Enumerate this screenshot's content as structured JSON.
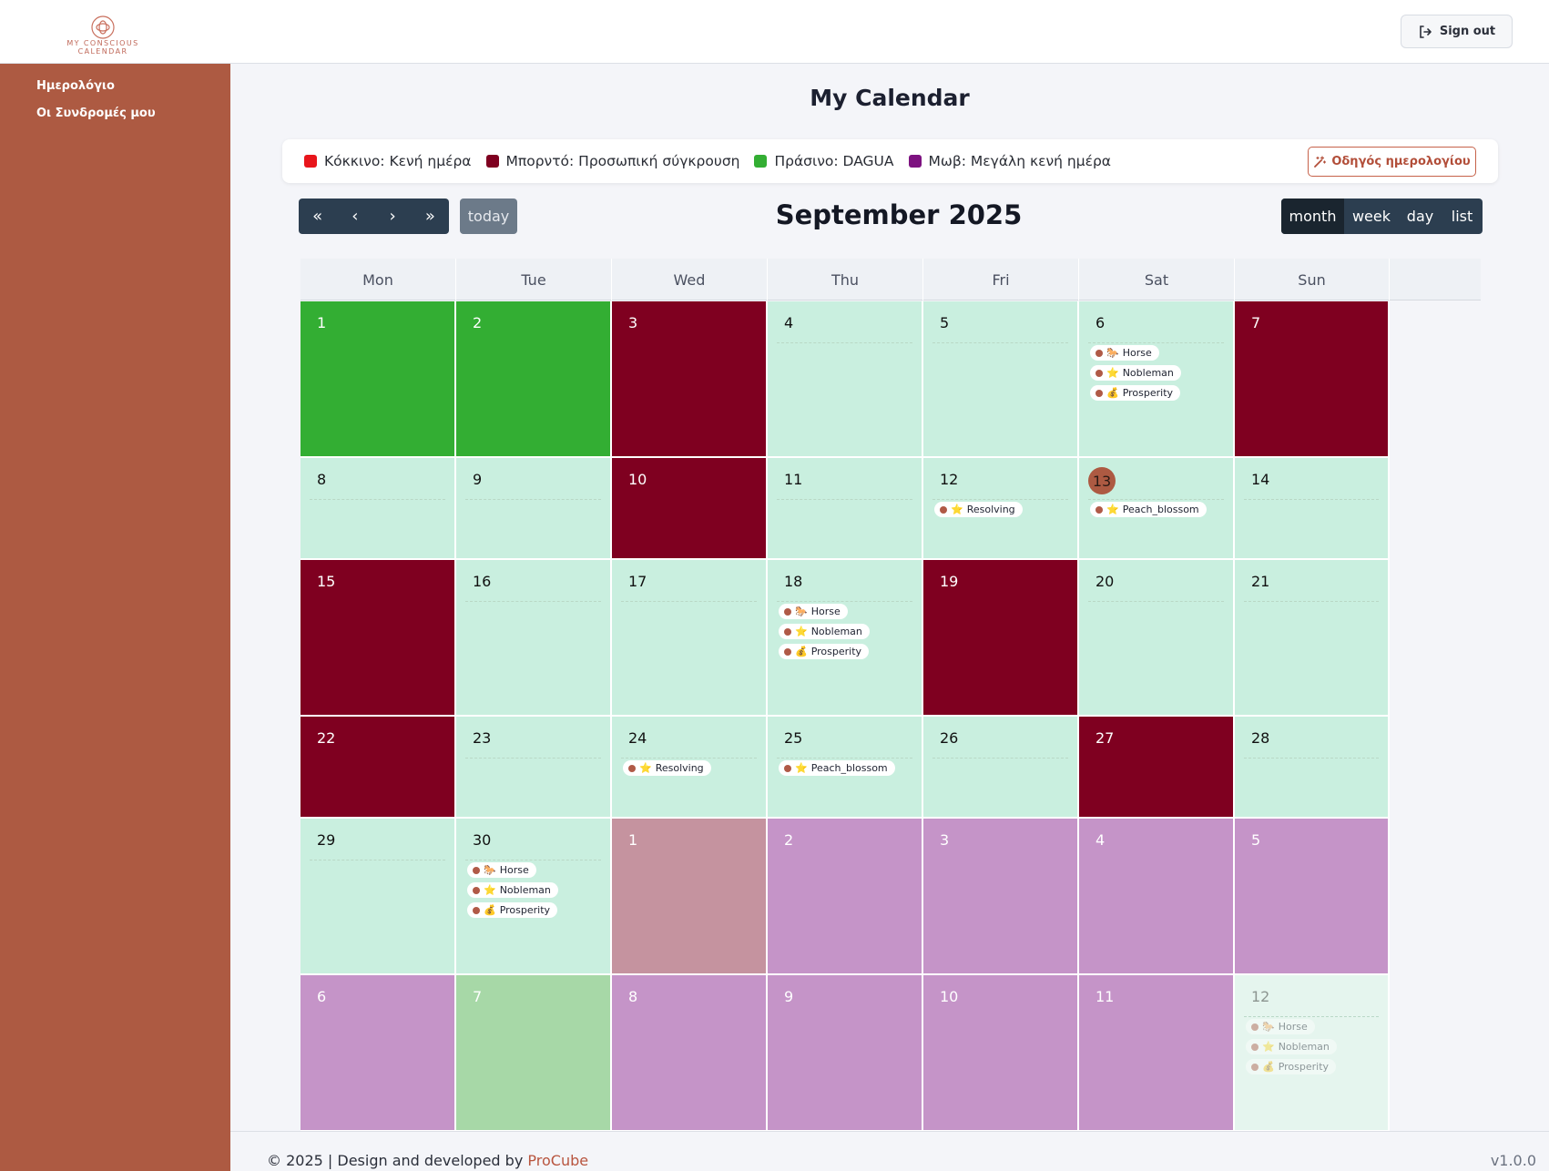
{
  "header": {
    "logo_text": "MY CONSCIOUS CALENDAR",
    "signout_label": "Sign out"
  },
  "sidebar": {
    "items": [
      {
        "label": "Ημερολόγιο"
      },
      {
        "label": "Οι Συνδρομές μου"
      }
    ]
  },
  "main": {
    "title": "My Calendar",
    "legend": [
      {
        "color": "#e8151b",
        "label": "Κόκκινο: Κενή ημέρα"
      },
      {
        "color": "#7f0020",
        "label": "Μπορντό: Προσωπική σύγκρουση"
      },
      {
        "color": "#33ae33",
        "label": "Πράσινο: DAGUA"
      },
      {
        "color": "#7d1280",
        "label": "Μωβ: Μεγάλη κενή ημέρα"
      }
    ],
    "guide_label": "Οδηγός ημερολογίου"
  },
  "toolbar": {
    "nav": [
      "«",
      "‹",
      "›",
      "»"
    ],
    "today_label": "today",
    "title": "September 2025",
    "views": [
      {
        "label": "month",
        "active": true
      },
      {
        "label": "week",
        "active": false
      },
      {
        "label": "day",
        "active": false
      },
      {
        "label": "list",
        "active": false
      }
    ]
  },
  "calendar": {
    "weekdays": [
      "Mon",
      "Tue",
      "Wed",
      "Thu",
      "Fri",
      "Sat",
      "Sun"
    ],
    "colors": {
      "green": "#33ae33",
      "maroon": "#7f0020",
      "mint": "#c9efdf",
      "purple": "#c594c8",
      "pink": "#c5939f",
      "lightgreen": "#a7d8a7",
      "pale": "#e5f5ee"
    },
    "weeks": [
      [
        {
          "day": "1",
          "bg": "green"
        },
        {
          "day": "2",
          "bg": "green"
        },
        {
          "day": "3",
          "bg": "maroon"
        },
        {
          "day": "4",
          "bg": "mint"
        },
        {
          "day": "5",
          "bg": "mint"
        },
        {
          "day": "6",
          "bg": "mint",
          "events": [
            {
              "icon": "🐎",
              "label": "Horse"
            },
            {
              "icon": "⭐",
              "label": "Nobleman"
            },
            {
              "icon": "💰",
              "label": "Prosperity"
            }
          ]
        },
        {
          "day": "7",
          "bg": "maroon"
        }
      ],
      [
        {
          "day": "8",
          "bg": "mint"
        },
        {
          "day": "9",
          "bg": "mint"
        },
        {
          "day": "10",
          "bg": "maroon"
        },
        {
          "day": "11",
          "bg": "mint"
        },
        {
          "day": "12",
          "bg": "mint",
          "events": [
            {
              "icon": "⭐",
              "label": "Resolving"
            }
          ]
        },
        {
          "day": "13",
          "bg": "mint",
          "today": true,
          "events": [
            {
              "icon": "⭐",
              "label": "Peach_blossom"
            }
          ]
        },
        {
          "day": "14",
          "bg": "mint"
        }
      ],
      [
        {
          "day": "15",
          "bg": "maroon"
        },
        {
          "day": "16",
          "bg": "mint"
        },
        {
          "day": "17",
          "bg": "mint"
        },
        {
          "day": "18",
          "bg": "mint",
          "events": [
            {
              "icon": "🐎",
              "label": "Horse"
            },
            {
              "icon": "⭐",
              "label": "Nobleman"
            },
            {
              "icon": "💰",
              "label": "Prosperity"
            }
          ]
        },
        {
          "day": "19",
          "bg": "maroon"
        },
        {
          "day": "20",
          "bg": "mint"
        },
        {
          "day": "21",
          "bg": "mint"
        }
      ],
      [
        {
          "day": "22",
          "bg": "maroon"
        },
        {
          "day": "23",
          "bg": "mint"
        },
        {
          "day": "24",
          "bg": "mint",
          "events": [
            {
              "icon": "⭐",
              "label": "Resolving"
            }
          ]
        },
        {
          "day": "25",
          "bg": "mint",
          "events": [
            {
              "icon": "⭐",
              "label": "Peach_blossom"
            }
          ]
        },
        {
          "day": "26",
          "bg": "mint"
        },
        {
          "day": "27",
          "bg": "maroon"
        },
        {
          "day": "28",
          "bg": "mint"
        }
      ],
      [
        {
          "day": "29",
          "bg": "mint"
        },
        {
          "day": "30",
          "bg": "mint",
          "events": [
            {
              "icon": "🐎",
              "label": "Horse"
            },
            {
              "icon": "⭐",
              "label": "Nobleman"
            },
            {
              "icon": "💰",
              "label": "Prosperity"
            }
          ]
        },
        {
          "day": "1",
          "bg": "pink",
          "other": true
        },
        {
          "day": "2",
          "bg": "purple",
          "other": true
        },
        {
          "day": "3",
          "bg": "purple",
          "other": true
        },
        {
          "day": "4",
          "bg": "purple",
          "other": true
        },
        {
          "day": "5",
          "bg": "purple",
          "other": true
        }
      ],
      [
        {
          "day": "6",
          "bg": "purple",
          "other": true
        },
        {
          "day": "7",
          "bg": "lightgreen",
          "other": true
        },
        {
          "day": "8",
          "bg": "purple",
          "other": true
        },
        {
          "day": "9",
          "bg": "purple",
          "other": true
        },
        {
          "day": "10",
          "bg": "purple",
          "other": true
        },
        {
          "day": "11",
          "bg": "purple",
          "other": true
        },
        {
          "day": "12",
          "bg": "pale",
          "other": true,
          "faded": true,
          "events": [
            {
              "icon": "🐎",
              "label": "Horse"
            },
            {
              "icon": "⭐",
              "label": "Nobleman"
            },
            {
              "icon": "💰",
              "label": "Prosperity"
            }
          ]
        }
      ]
    ]
  },
  "footer": {
    "copyright": "© 2025 | Design and developed by ",
    "brand": "ProCube",
    "version": "v1.0.0"
  }
}
